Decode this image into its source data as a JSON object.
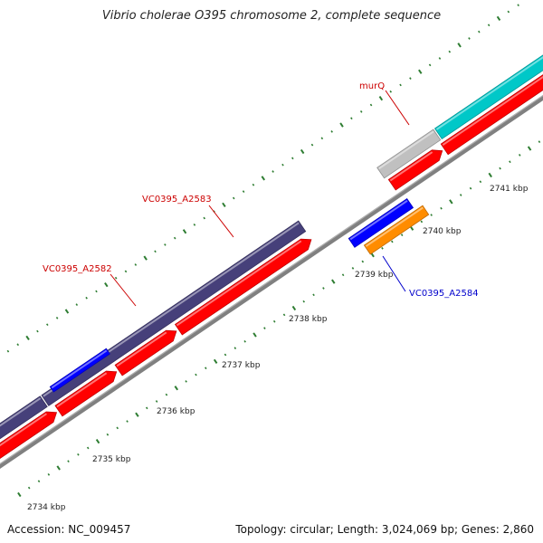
{
  "title": "Vibrio cholerae O395 chromosome 2, complete sequence",
  "footer": {
    "accession": "Accession: NC_009457",
    "summary": "Topology: circular; Length: 3,024,069 bp; Genes: 2,860"
  },
  "colors": {
    "cds_forward": "#ff0000",
    "gene_dark": "#46407a",
    "gene_blue": "#0000ff",
    "gene_orange": "#ff8c00",
    "gene_gray": "#c0c0c0",
    "gene_cyan": "#00c8c8",
    "backbone": "#808080",
    "tick": "#2e7d32",
    "label_red": "#cc0000",
    "label_blue": "#0000cc"
  },
  "scale_labels": [
    "2734 kbp",
    "2735 kbp",
    "2736 kbp",
    "2737 kbp",
    "2738 kbp",
    "2739 kbp",
    "2740 kbp",
    "2741 kbp"
  ],
  "gene_labels": [
    {
      "text": "murQ",
      "color": "label_red"
    },
    {
      "text": "VC0395_A2583",
      "color": "label_red"
    },
    {
      "text": "VC0395_A2582",
      "color": "label_red"
    },
    {
      "text": "VC0395_A2584",
      "color": "label_blue"
    }
  ]
}
